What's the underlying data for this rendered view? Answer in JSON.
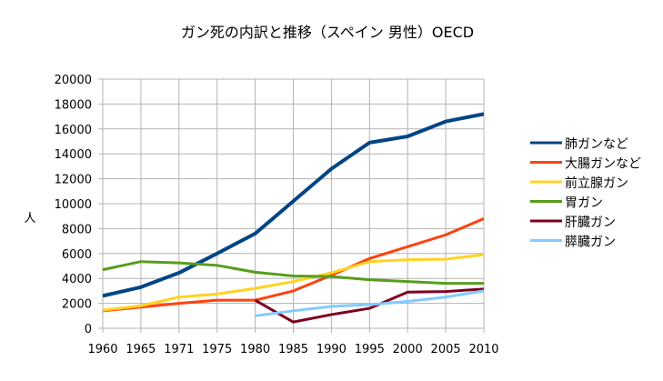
{
  "chart_data": {
    "type": "line",
    "title": "ガン死の内訳と推移（スペイン 男性）OECD",
    "xlabel": "",
    "ylabel": "人",
    "ylim": [
      0,
      20000
    ],
    "ytick_step": 2000,
    "grid": true,
    "legend": "right",
    "categories": [
      "1960",
      "1965",
      "1971",
      "1975",
      "1980",
      "1985",
      "1990",
      "1995",
      "2000",
      "2005",
      "2010"
    ],
    "series": [
      {
        "name": "肺ガンなど",
        "color": "#004586",
        "values": [
          2600,
          3300,
          4450,
          6000,
          7600,
          10200,
          12800,
          14900,
          15400,
          16600,
          17200
        ]
      },
      {
        "name": "大腸ガンなど",
        "color": "#ff420e",
        "values": [
          1400,
          1700,
          2000,
          2250,
          2250,
          3000,
          4250,
          5600,
          6550,
          7500,
          8800
        ]
      },
      {
        "name": "前立腺ガン",
        "color": "#ffd320",
        "values": [
          1450,
          1800,
          2500,
          2750,
          3200,
          3750,
          4450,
          5350,
          5500,
          5550,
          5900
        ]
      },
      {
        "name": "胃ガン",
        "color": "#579d1c",
        "values": [
          4700,
          5350,
          5250,
          5050,
          4500,
          4200,
          4150,
          3900,
          3750,
          3600,
          3600
        ]
      },
      {
        "name": "肝臓ガン",
        "color": "#7e0021",
        "values": [
          null,
          null,
          null,
          null,
          2250,
          500,
          1100,
          1600,
          2900,
          2950,
          3150
        ]
      },
      {
        "name": "膵臓ガン",
        "color": "#83caff",
        "values": [
          null,
          null,
          null,
          null,
          1000,
          1400,
          1750,
          1900,
          2150,
          2500,
          3000
        ]
      }
    ]
  }
}
